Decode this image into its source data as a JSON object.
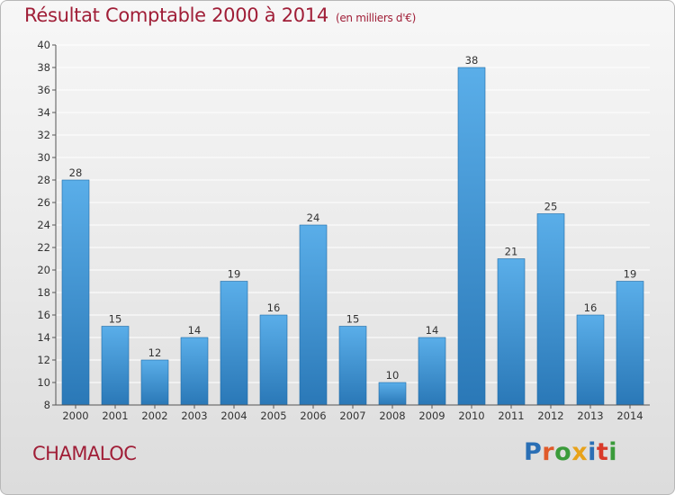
{
  "colors": {
    "title": "#a01e37",
    "bar_top": "#5aaee9",
    "bar_bottom": "#2a78b7",
    "axis": "#555555",
    "grid": "#ffffff"
  },
  "footer": {
    "commune": "CHAMALOC"
  },
  "logo": {
    "text": "Proxiti",
    "letter_colors": [
      "#2a6fb5",
      "#e05a2a",
      "#3a9b3a",
      "#e8a21a",
      "#2a6fb5",
      "#d93a2a",
      "#3a9b3a"
    ]
  },
  "chart_data": {
    "type": "bar",
    "title": "Résultat Comptable 2000 à 2014",
    "subtitle": "(en milliers d'€)",
    "xlabel": "",
    "ylabel": "",
    "categories": [
      "2000",
      "2001",
      "2002",
      "2003",
      "2004",
      "2005",
      "2006",
      "2007",
      "2008",
      "2009",
      "2010",
      "2011",
      "2012",
      "2013",
      "2014"
    ],
    "values": [
      28,
      15,
      12,
      14,
      19,
      16,
      24,
      15,
      10,
      14,
      38,
      21,
      25,
      16,
      19
    ],
    "ylim": [
      8,
      40
    ],
    "yticks": [
      8,
      10,
      12,
      14,
      16,
      18,
      20,
      22,
      24,
      26,
      28,
      30,
      32,
      34,
      36,
      38,
      40
    ],
    "grid": true,
    "legend": "none"
  }
}
